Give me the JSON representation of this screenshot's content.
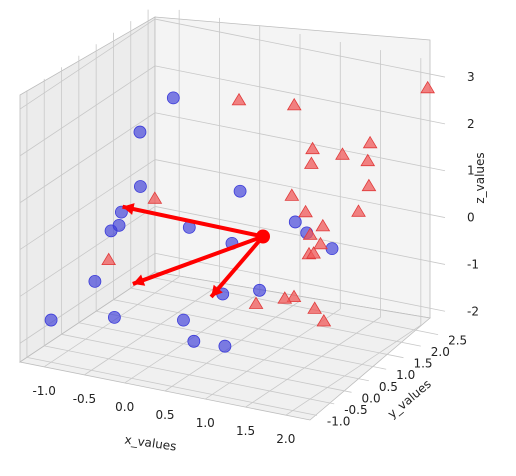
{
  "chart_data": {
    "type": "scatter",
    "subtype": "3d-scatter",
    "title": "",
    "xlabel": "x_values",
    "ylabel": "y_values",
    "zlabel": "z_values",
    "xlim": [
      -1.3,
      2.3
    ],
    "ylim": [
      -1.2,
      2.7
    ],
    "zlim": [
      -2.4,
      3.3
    ],
    "x_ticks": [
      "-1.0",
      "-0.5",
      "0.0",
      "0.5",
      "1.0",
      "1.5",
      "2.0"
    ],
    "y_ticks": [
      "-1.0",
      "-0.5",
      "0.0",
      "0.5",
      "1.0",
      "1.5",
      "2.0",
      "2.5"
    ],
    "z_ticks": [
      "-2",
      "-1",
      "0",
      "1",
      "2",
      "3"
    ],
    "grid": true,
    "legend": "none",
    "colors": {
      "blue_series": "#3b3bd9",
      "red_series": "#f05a5a",
      "arrows": "#ff0000",
      "pane_left": "#ececec",
      "pane_back": "#f4f4f4",
      "pane_floor": "#f0f0f0",
      "grid": "#c8c8c8"
    },
    "series": [
      {
        "marker": "circle",
        "color": "#3b3bd9",
        "x": [
          -1.0,
          -0.9,
          -0.6,
          -0.45,
          -0.3,
          -0.8,
          -1.1,
          -0.6,
          0.1,
          0.3,
          0.6,
          0.9,
          0.9,
          1.4,
          1.8,
          0.2,
          0.4,
          1.0,
          0.6,
          -0.5
        ],
        "y": [
          -1.0,
          0.5,
          0.1,
          0.3,
          -0.8,
          -0.2,
          1.8,
          1.6,
          1.9,
          1.2,
          -0.6,
          -0.4,
          0.6,
          0.8,
          0.6,
          0.2,
          0.7,
          1.4,
          -0.9,
          -0.2
        ],
        "z": [
          -1.5,
          -0.3,
          0.4,
          0.9,
          -1.3,
          -1.0,
          1.1,
          2.1,
          0.2,
          -0.5,
          -1.6,
          -1.7,
          -1.0,
          0.3,
          0.2,
          0.3,
          -1.3,
          0.1,
          -1.0,
          0.3
        ]
      },
      {
        "marker": "triangle",
        "color": "#f05a5a",
        "x": [
          2.3,
          0.0,
          0.6,
          1.0,
          1.2,
          1.5,
          1.8,
          1.9,
          2.0,
          2.0,
          1.0,
          1.3,
          1.4,
          1.6,
          1.6,
          1.7,
          1.7,
          1.8,
          2.1,
          2.3,
          1.2,
          1.6,
          -0.4,
          -0.5
        ],
        "y": [
          2.2,
          2.1,
          2.3,
          1.9,
          1.4,
          1.6,
          1.7,
          1.4,
          1.2,
          0.9,
          1.3,
          1.0,
          0.9,
          0.8,
          0.4,
          0.5,
          0.3,
          -0.5,
          -0.6,
          -0.8,
          -0.2,
          -0.3,
          0.6,
          -0.5
        ],
        "z": [
          3.0,
          2.0,
          2.0,
          1.4,
          1.4,
          1.6,
          1.9,
          1.7,
          1.3,
          0.9,
          0.7,
          0.6,
          0.2,
          0.5,
          0.1,
          0.3,
          0.2,
          -0.3,
          -0.4,
          -0.5,
          -0.8,
          -0.5,
          0.5,
          -0.3
        ]
      }
    ],
    "origin_point": {
      "x": 0.9,
      "y": 0.7,
      "z": 0.1
    },
    "arrows": [
      {
        "from": [
          0.9,
          0.7,
          0.1
        ],
        "to": [
          -0.8,
          0.6,
          0.2
        ]
      },
      {
        "from": [
          0.9,
          0.7,
          0.1
        ],
        "to": [
          -0.2,
          -0.5,
          -0.7
        ]
      },
      {
        "from": [
          0.9,
          0.7,
          0.1
        ],
        "to": [
          0.6,
          -0.1,
          -0.9
        ]
      }
    ]
  }
}
